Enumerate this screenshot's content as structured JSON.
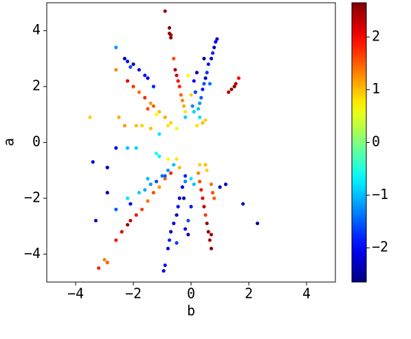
{
  "chart_data": {
    "type": "scatter",
    "x_label": "b",
    "y_label": "a",
    "xlim": [
      -5,
      5
    ],
    "ylim": [
      -5,
      5
    ],
    "xticks": [
      {
        "value": -4,
        "label": "−4"
      },
      {
        "value": -2,
        "label": "−2"
      },
      0,
      2,
      4
    ],
    "yticks": [
      {
        "value": -4,
        "label": "−4"
      },
      {
        "value": -2,
        "label": "−2"
      },
      0,
      2,
      4
    ],
    "colormap": "jet",
    "clim": [
      -2.65,
      2.65
    ],
    "cticks": [
      {
        "value": -2,
        "label": "−2"
      },
      {
        "value": -1,
        "label": "−1"
      },
      0,
      1,
      2
    ],
    "x": [
      -0.9,
      -0.75,
      -0.75,
      -0.7,
      -0.7,
      0.9,
      0.85,
      0.8,
      0.75,
      0.7,
      0.6,
      0.55,
      0.5,
      0.45,
      0.4,
      0.35,
      0.3,
      0.25,
      0.2,
      0.1,
      0.15,
      0.05,
      0.45,
      0.65,
      -0.6,
      -0.55,
      -0.5,
      -0.45,
      -0.4,
      -0.35,
      -0.3,
      -0.25,
      -0.2,
      -0.1,
      0.0,
      -2.3,
      -2.2,
      -2.0,
      -1.8,
      -1.6,
      -1.5,
      -1.3,
      -2.6,
      -2.1,
      -2.2,
      -2.0,
      -1.8,
      -1.6,
      -1.4,
      -1.3,
      -1.1,
      -0.9,
      -0.7,
      -0.5,
      -1.5,
      -1.2,
      0.1,
      0.3,
      0.5,
      0.4,
      -0.2,
      0.2,
      -3.5,
      -2.5,
      -1.9,
      -1.7,
      -1.4,
      -2.3,
      -2.6,
      -1.1,
      -0.8,
      1.3,
      1.4,
      1.5,
      1.55,
      1.65,
      -2.2,
      -1.9,
      -1.2,
      -1.1,
      -0.8,
      -0.5,
      -0.4,
      -0.6,
      -0.8,
      -1.0,
      -1.2,
      -1.4,
      -1.6,
      -1.8,
      -2.2,
      -2.6,
      -1.5,
      -0.7,
      -0.9,
      -1.1,
      -1.3,
      -1.5,
      -1.7,
      -1.9,
      -2.1,
      -2.2,
      -2.4,
      -2.6,
      -2.9,
      -3.0,
      -3.2,
      -0.2,
      -0.3,
      -0.4,
      -0.45,
      -0.5,
      -0.6,
      -0.7,
      -0.75,
      -0.8,
      -0.9,
      -0.95,
      -0.1,
      -0.2,
      -0.1,
      0.0,
      -0.25,
      -0.5,
      0.25,
      0.3,
      0.35,
      0.4,
      0.45,
      0.5,
      0.55,
      0.6,
      0.65,
      0.7,
      0.7,
      0.3,
      0.5,
      0.55,
      0.1,
      0.0,
      0.7,
      0.75,
      0.8,
      1.0,
      -3.4,
      -2.9,
      -2.9,
      -3.3,
      1.2,
      1.8,
      2.3,
      -2.6,
      -2.1,
      -0.2,
      -0.9
    ],
    "values": [
      4.7,
      4.1,
      3.9,
      3.85,
      3.75,
      3.7,
      3.6,
      3.4,
      3.2,
      3.0,
      2.8,
      2.5,
      2.3,
      2.1,
      1.9,
      1.6,
      1.4,
      1.2,
      2.5,
      2.2,
      1.8,
      1.3,
      3.0,
      2.1,
      3.0,
      2.6,
      2.4,
      2.2,
      2.0,
      1.7,
      1.5,
      1.3,
      1.1,
      2.4,
      1.7,
      3.0,
      2.9,
      2.8,
      2.6,
      2.4,
      2.3,
      2.0,
      3.4,
      2.7,
      2.2,
      2.0,
      1.8,
      1.6,
      1.4,
      1.3,
      1.1,
      0.9,
      0.7,
      0.5,
      1.2,
      1.0,
      1.1,
      0.9,
      0.8,
      0.7,
      0.9,
      0.6,
      0.9,
      0.9,
      0.6,
      0.6,
      0.5,
      0.6,
      2.6,
      0.3,
      0.6,
      1.8,
      1.9,
      2.0,
      2.1,
      2.3,
      -0.2,
      -0.2,
      -0.4,
      -0.5,
      -0.6,
      -0.6,
      -0.9,
      -0.8,
      -1.0,
      -1.2,
      -1.4,
      -1.5,
      -1.7,
      -1.8,
      -2.0,
      -2.4,
      -1.3,
      -1.1,
      -1.3,
      -1.6,
      -1.8,
      -2.1,
      -2.4,
      -2.6,
      -2.8,
      -2.95,
      -3.2,
      -3.5,
      -4.3,
      -4.2,
      -4.5,
      -1.2,
      -1.6,
      -2.0,
      -2.3,
      -2.6,
      -2.9,
      -3.2,
      -3.5,
      -3.8,
      -4.4,
      -4.6,
      -2.8,
      -3.1,
      -3.3,
      -2.3,
      -2.0,
      -3.6,
      -1.1,
      -1.4,
      -1.7,
      -2.0,
      -2.3,
      -2.6,
      -2.9,
      -3.2,
      -3.5,
      -3.8,
      -3.3,
      -0.8,
      -0.8,
      -1.0,
      -1.5,
      -1.3,
      -1.5,
      -1.8,
      -2.0,
      -1.6,
      -0.7,
      -0.9,
      -1.8,
      -2.8,
      -1.5,
      -2.2,
      -2.9,
      -0.2,
      -2.2,
      -1.4,
      -1.2
    ],
    "color_values": [
      2.5,
      2.6,
      2.6,
      2.5,
      2.5,
      -2.2,
      -2.0,
      -2.3,
      -1.8,
      -2.1,
      -1.9,
      -1.7,
      -2.3,
      -1.6,
      -1.9,
      -1.5,
      -1.2,
      -1.0,
      -2.4,
      -2.0,
      -1.7,
      -1.3,
      -2.5,
      -1.4,
      1.6,
      2.4,
      2.2,
      2.0,
      1.8,
      1.5,
      1.3,
      1.1,
      0.8,
      0.7,
      0.9,
      -2.3,
      -2.0,
      -2.4,
      -2.1,
      -1.9,
      -2.2,
      -1.8,
      -1.2,
      -1.6,
      2.1,
      1.7,
      1.4,
      1.8,
      1.2,
      1.5,
      1.0,
      1.1,
      0.9,
      0.6,
      1.6,
      0.7,
      -0.9,
      -0.8,
      0.9,
      1.0,
      -0.9,
      0.8,
      0.9,
      1.1,
      1.0,
      0.9,
      1.0,
      1.2,
      1.3,
      -0.8,
      0.8,
      2.4,
      2.5,
      2.6,
      2.4,
      2.0,
      -1.0,
      -0.9,
      -0.6,
      -0.7,
      0.6,
      0.8,
      1.0,
      -1.0,
      -1.2,
      -1.4,
      -1.6,
      -1.2,
      -1.1,
      -0.9,
      -0.8,
      -1.5,
      -1.0,
      1.8,
      1.5,
      1.2,
      1.6,
      1.4,
      1.7,
      1.9,
      2.3,
      2.5,
      2.1,
      1.9,
      1.5,
      1.3,
      1.8,
      -1.8,
      -2.0,
      -2.2,
      -1.9,
      -2.4,
      -2.1,
      -2.3,
      -1.8,
      -2.2,
      -2.0,
      -2.3,
      -1.6,
      -2.0,
      -2.5,
      -1.9,
      -2.4,
      -1.7,
      1.3,
      1.6,
      1.9,
      2.1,
      2.3,
      1.7,
      2.5,
      2.6,
      2.4,
      2.6,
      2.5,
      0.9,
      1.0,
      0.9,
      -1.0,
      -0.8,
      1.4,
      1.6,
      1.5,
      -2.2,
      -2.2,
      -2.4,
      -2.4,
      -2.2,
      -2.3,
      -2.3,
      -2.4,
      -2.0,
      -2.1,
      -1.3,
      -1.5
    ]
  }
}
